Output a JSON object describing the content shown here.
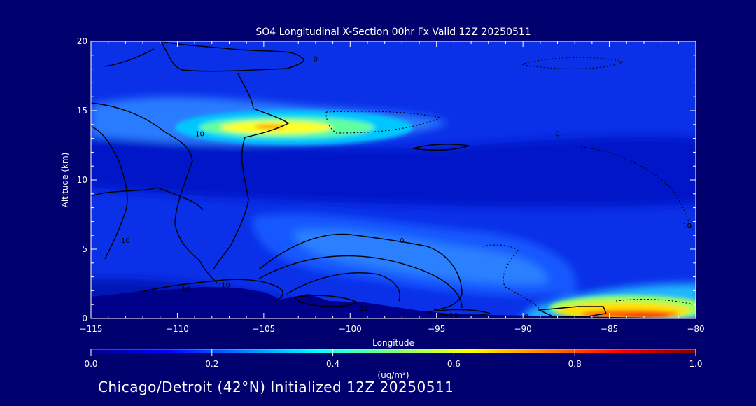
{
  "chart_data": {
    "type": "heatmap",
    "title": "SO4 Longitudinal X-Section 00hr  Fx Valid 12Z 20250511",
    "xlabel": "Longitude",
    "ylabel": "Altitude (km)",
    "xlim": [
      -115,
      -80
    ],
    "ylim": [
      0,
      20
    ],
    "x_ticks": [
      -115,
      -110,
      -105,
      -100,
      -95,
      -90,
      -85,
      -80
    ],
    "x_tick_labels": [
      "−115",
      "−110",
      "−105",
      "−100",
      "−95",
      "−90",
      "−85",
      "−80"
    ],
    "y_ticks": [
      0,
      5,
      10,
      15,
      20
    ],
    "y_tick_labels": [
      "0",
      "5",
      "10",
      "15",
      "20"
    ],
    "colorbar": {
      "min": 0.0,
      "max": 1.0,
      "ticks": [
        "0.0",
        "0.2",
        "0.4",
        "0.6",
        "0.8",
        "1.0"
      ],
      "units": "(ug/m³)",
      "colormap": "jet"
    },
    "features": [
      {
        "name": "upper-plume",
        "lon": -103,
        "alt": 14,
        "value": 0.65
      },
      {
        "name": "surface-plume-east",
        "lon": -84,
        "alt": 0.5,
        "value": 0.9
      },
      {
        "name": "upper-background",
        "lon": -97.5,
        "alt": 15,
        "value": 0.2
      },
      {
        "name": "surface-depletion",
        "lon": -110,
        "alt": 1,
        "value": 0.05
      }
    ],
    "contour_labels": [
      {
        "text": "0",
        "lon": -102,
        "alt": 18.7
      },
      {
        "text": "10",
        "lon": -108.7,
        "alt": 13.3
      },
      {
        "text": "0",
        "lon": -88,
        "alt": 13.3
      },
      {
        "text": "10",
        "lon": -80.5,
        "alt": 6.7
      },
      {
        "text": "0",
        "lon": -97,
        "alt": 5.6
      },
      {
        "text": "10",
        "lon": -113,
        "alt": 5.6
      },
      {
        "text": "10",
        "lon": -107.2,
        "alt": 2.4
      },
      {
        "text": "10",
        "lon": -109.5,
        "alt": 2.1
      },
      {
        "text": "10",
        "lon": -99.2,
        "alt": 0.7
      },
      {
        "text": "10",
        "lon": -94,
        "alt": 0.2
      },
      {
        "text": "0",
        "lon": -89.8,
        "alt": 0.1
      }
    ]
  },
  "footer": "Chicago/Detroit (42°N) Initialized 12Z 20250511",
  "colors": {
    "background": "#00006e",
    "axes": "#ffffff"
  }
}
